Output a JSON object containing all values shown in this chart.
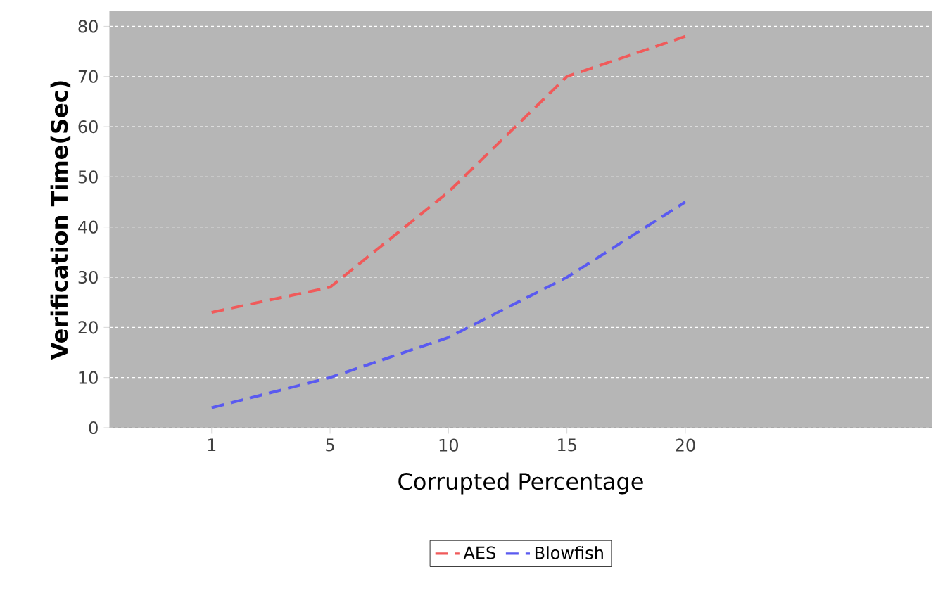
{
  "chart_data": {
    "type": "line",
    "xlabel": "Corrupted Percentage",
    "ylabel": "Verification Time(Sec)",
    "categories": [
      "1",
      "5",
      "10",
      "15",
      "20"
    ],
    "series": [
      {
        "name": "AES",
        "color": "#f05a5a",
        "values": [
          23,
          28,
          47,
          70,
          78
        ]
      },
      {
        "name": "Blowfish",
        "color": "#5a5af0",
        "values": [
          4,
          10,
          18,
          30,
          45
        ]
      }
    ],
    "ylim": [
      0,
      83
    ],
    "yticks": [
      0,
      10,
      20,
      30,
      40,
      50,
      60,
      70,
      80
    ],
    "grid": "y",
    "legend": "bottom",
    "line_style": "dashed",
    "marker": "none"
  }
}
